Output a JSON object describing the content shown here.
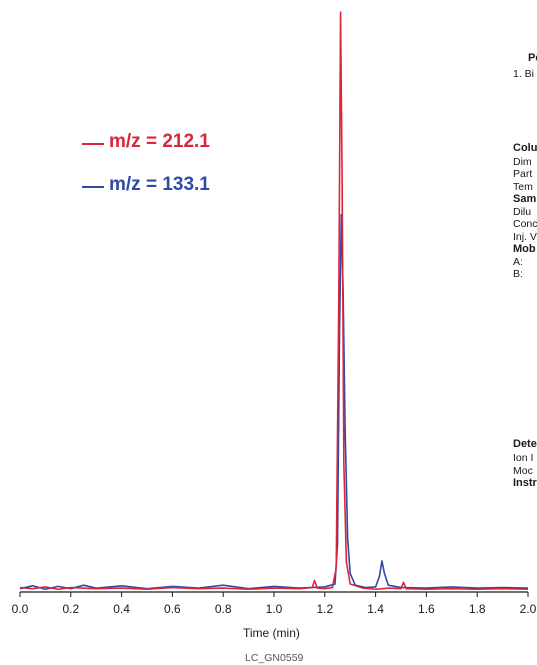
{
  "chart_data": {
    "type": "line",
    "xlabel": "Time (min)",
    "xlim": [
      0.0,
      2.0
    ],
    "ylim": [
      0,
      100
    ],
    "x_ticks": [
      "0.0",
      "0.2",
      "0.4",
      "0.6",
      "0.8",
      "1.0",
      "1.2",
      "1.4",
      "1.6",
      "1.8",
      "2.0"
    ],
    "series": [
      {
        "name": "m/z = 212.1",
        "color": "#d9263b",
        "points": [
          [
            0.0,
            0.6
          ],
          [
            0.05,
            0.4
          ],
          [
            0.1,
            0.7
          ],
          [
            0.15,
            0.3
          ],
          [
            0.2,
            0.6
          ],
          [
            0.3,
            0.4
          ],
          [
            0.4,
            0.5
          ],
          [
            0.5,
            0.3
          ],
          [
            0.6,
            0.6
          ],
          [
            0.7,
            0.4
          ],
          [
            0.8,
            0.5
          ],
          [
            0.9,
            0.3
          ],
          [
            1.0,
            0.5
          ],
          [
            1.1,
            0.4
          ],
          [
            1.15,
            0.6
          ],
          [
            1.16,
            1.8
          ],
          [
            1.17,
            0.5
          ],
          [
            1.2,
            0.4
          ],
          [
            1.23,
            0.6
          ],
          [
            1.245,
            4
          ],
          [
            1.255,
            50
          ],
          [
            1.262,
            100
          ],
          [
            1.268,
            72
          ],
          [
            1.275,
            22
          ],
          [
            1.285,
            5
          ],
          [
            1.3,
            1.2
          ],
          [
            1.35,
            0.5
          ],
          [
            1.4,
            0.3
          ],
          [
            1.45,
            0.5
          ],
          [
            1.5,
            0.4
          ],
          [
            1.51,
            1.5
          ],
          [
            1.52,
            0.4
          ],
          [
            1.6,
            0.3
          ],
          [
            1.7,
            0.4
          ],
          [
            1.8,
            0.3
          ],
          [
            1.9,
            0.4
          ],
          [
            2.0,
            0.3
          ]
        ]
      },
      {
        "name": "m/z = 133.1",
        "color": "#2e49a6",
        "points": [
          [
            0.0,
            0.4
          ],
          [
            0.05,
            0.9
          ],
          [
            0.1,
            0.3
          ],
          [
            0.15,
            0.8
          ],
          [
            0.2,
            0.4
          ],
          [
            0.25,
            1.0
          ],
          [
            0.3,
            0.5
          ],
          [
            0.4,
            0.9
          ],
          [
            0.5,
            0.4
          ],
          [
            0.6,
            0.8
          ],
          [
            0.7,
            0.5
          ],
          [
            0.8,
            1.0
          ],
          [
            0.9,
            0.4
          ],
          [
            1.0,
            0.8
          ],
          [
            1.1,
            0.5
          ],
          [
            1.2,
            0.7
          ],
          [
            1.24,
            1.2
          ],
          [
            1.25,
            8
          ],
          [
            1.258,
            45
          ],
          [
            1.265,
            65
          ],
          [
            1.272,
            52
          ],
          [
            1.28,
            28
          ],
          [
            1.29,
            9
          ],
          [
            1.3,
            3
          ],
          [
            1.32,
            1
          ],
          [
            1.36,
            0.6
          ],
          [
            1.4,
            0.7
          ],
          [
            1.415,
            2.5
          ],
          [
            1.425,
            5.2
          ],
          [
            1.435,
            3
          ],
          [
            1.45,
            1
          ],
          [
            1.5,
            0.6
          ],
          [
            1.6,
            0.5
          ],
          [
            1.7,
            0.7
          ],
          [
            1.8,
            0.5
          ],
          [
            1.9,
            0.6
          ],
          [
            2.0,
            0.5
          ]
        ]
      }
    ]
  },
  "legend": {
    "red_label": "m/z = 212.1",
    "blue_label": "m/z = 133.1",
    "red_color": "#d9263b",
    "blue_color": "#2e49a6"
  },
  "side_text": {
    "peaks_header": "Pe",
    "peak_1": "1. Bi",
    "column_header": "Colu",
    "dim": "Dim",
    "part": "Part",
    "temp": "Tem",
    "sample_header": "Sam",
    "diluent": "Dilu",
    "conc": "Conc",
    "inj": "Inj. V",
    "mobile_header": "Mob",
    "mobile_a": "A:",
    "mobile_b": "B:",
    "detector_header": "Dete",
    "ion": "Ion I",
    "mode": "Moc",
    "instrument_header": "Instr"
  },
  "footer": {
    "code": "LC_GN0559"
  }
}
